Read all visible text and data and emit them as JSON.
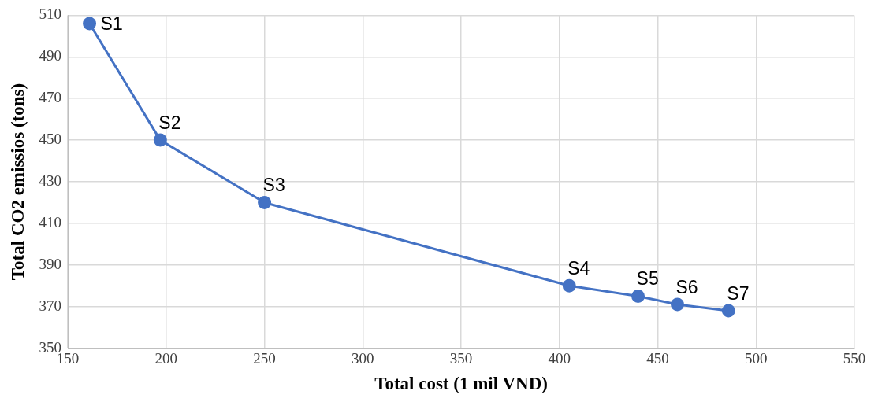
{
  "chart_data": {
    "type": "line",
    "xlabel": "Total cost (1 mil VND)",
    "ylabel": "Total CO2 emissios (tons)",
    "x": [
      161,
      197,
      250,
      405,
      440,
      460,
      486
    ],
    "series": [
      {
        "color": "#4472c4",
        "values": [
          506,
          450,
          420,
          380,
          375,
          371,
          368
        ]
      }
    ],
    "xlim": [
      150,
      550
    ],
    "xticks": [
      150,
      200,
      250,
      300,
      350,
      400,
      450,
      500,
      550
    ],
    "ylim": [
      350,
      510
    ],
    "yticks": [
      350,
      370,
      390,
      410,
      430,
      450,
      470,
      490,
      510
    ],
    "grid": true,
    "legend": false,
    "marker": "circle",
    "line_style": "solid",
    "annotations": [
      {
        "text": "S1",
        "x": 161,
        "y": 506
      },
      {
        "text": "S2",
        "x": 197,
        "y": 450
      },
      {
        "text": "S3",
        "x": 250,
        "y": 420
      },
      {
        "text": "S4",
        "x": 405,
        "y": 380
      },
      {
        "text": "S5",
        "x": 440,
        "y": 375
      },
      {
        "text": "S6",
        "x": 460,
        "y": 371
      },
      {
        "text": "S7",
        "x": 486,
        "y": 368
      }
    ]
  }
}
